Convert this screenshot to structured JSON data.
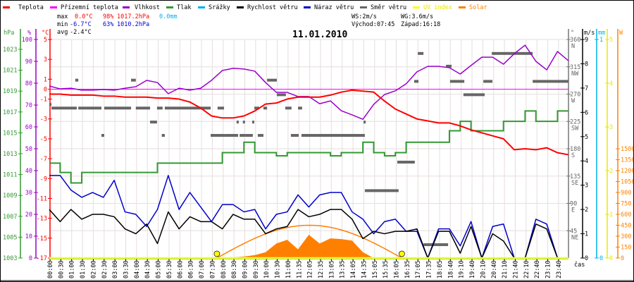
{
  "legend": [
    {
      "label": "Teplota",
      "color": "#ff0000"
    },
    {
      "label": "Přízemní teplota",
      "color": "#ff00ff"
    },
    {
      "label": "Vlhkost",
      "color": "#9900cc"
    },
    {
      "label": "Tlak",
      "color": "#339933"
    },
    {
      "label": "Srážky",
      "color": "#00b0f0"
    },
    {
      "label": "Rychlost větru",
      "color": "#000000"
    },
    {
      "label": "Náraz větru",
      "color": "#0000cc"
    },
    {
      "label": "Směr větru",
      "color": "#666666"
    },
    {
      "label": "UV index",
      "color": "#ffff00"
    },
    {
      "label": "Solar",
      "color": "#ff8000"
    }
  ],
  "stats": {
    "max_label": "max",
    "max_temp": "0.0°C",
    "max_hum": "98%",
    "max_press": "1017.2hPa",
    "max_rain": "0.0mm",
    "min_label": "min",
    "min_temp": "-6.7°C",
    "min_hum": "63%",
    "min_press": "1010.2hPa",
    "avg_label": "avg",
    "avg_temp": "-2.4°C"
  },
  "wind_info": {
    "ws": "WS:2m/s",
    "wg": "WG:3.6m/s",
    "sunrise": "Východ:07:45",
    "sunset": "Západ:16:18"
  },
  "chart_data": {
    "type": "line",
    "title": "11.01.2010",
    "xlabel": "čas",
    "x_tick_labels": [
      "00:00",
      "00:30",
      "01:00",
      "01:30",
      "02:00",
      "02:30",
      "03:00",
      "03:30",
      "04:00",
      "04:30",
      "05:00",
      "05:30",
      "06:00",
      "06:30",
      "07:00",
      "07:30",
      "08:00",
      "08:30",
      "09:00",
      "09:30",
      "10:00",
      "10:30",
      "11:00",
      "11:35",
      "12:05",
      "12:35",
      "13:05",
      "13:35",
      "14:05",
      "14:35",
      "15:05",
      "15:35",
      "16:05",
      "16:35",
      "17:05",
      "17:35",
      "18:05",
      "18:40",
      "19:10",
      "19:40",
      "20:10",
      "20:40",
      "21:10",
      "21:40",
      "22:10",
      "22:40",
      "23:10",
      "23:40"
    ],
    "x_start_hours": 0,
    "x_step_hours": 0.5,
    "axes": {
      "pressure": {
        "unit": "hPa",
        "range": [
          1003,
          1023
        ],
        "ticks": [
          "1003",
          "1005",
          "1007",
          "1009",
          "1011",
          "1013",
          "1015",
          "1017",
          "1019",
          "1021",
          "1023"
        ],
        "color": "#339933"
      },
      "humidity": {
        "unit": "%",
        "range": [
          0,
          100
        ],
        "ticks": [
          "0",
          "10",
          "20",
          "30",
          "40",
          "50",
          "60",
          "70",
          "80",
          "90",
          "100"
        ],
        "color": "#9900cc"
      },
      "temperature": {
        "unit": "°C",
        "range": [
          -17,
          5
        ],
        "ticks": [
          "5",
          "3",
          "1",
          "0",
          "-1",
          "-3",
          "-5",
          "-7",
          "-9",
          "-11",
          "-13",
          "-15",
          "-17"
        ],
        "color": "#ff0000"
      },
      "direction": {
        "unit": "°",
        "range": [
          0,
          360
        ],
        "ticks": [
          {
            "v": "360",
            "d": "N"
          },
          {
            "v": "315",
            "d": "NW"
          },
          {
            "v": "270",
            "d": "W"
          },
          {
            "v": "225",
            "d": "SW"
          },
          {
            "v": "180",
            "d": "S"
          },
          {
            "v": "135",
            "d": "SE"
          },
          {
            "v": "90",
            "d": "E"
          },
          {
            "v": "45",
            "d": "NE"
          }
        ],
        "color": "#777777"
      },
      "wind": {
        "unit": "m/s",
        "range": [
          0,
          9
        ],
        "ticks": [
          "0",
          "1",
          "2",
          "3",
          "4",
          "5",
          "6",
          "7",
          "8",
          "9"
        ],
        "color": "#000000"
      },
      "rain": {
        "unit": "mm",
        "range": [
          0,
          1
        ],
        "ticks": [
          "0",
          "1"
        ],
        "color": "#00b0f0"
      },
      "uv": {
        "unit": "",
        "range": [
          0,
          5
        ],
        "ticks": [
          "0",
          "1",
          "2",
          "3",
          "4",
          "5"
        ],
        "color": "#e8e800"
      },
      "solar": {
        "unit": "W",
        "range": [
          0,
          3000
        ],
        "ticks": [
          "0",
          "150",
          "300",
          "450",
          "600",
          "750",
          "900",
          "1050",
          "1200",
          "1350",
          "1500"
        ],
        "color": "#ff8000"
      }
    },
    "series": {
      "temperature": [
        -0.5,
        -0.5,
        -0.6,
        -0.6,
        -0.6,
        -0.7,
        -0.7,
        -0.8,
        -0.8,
        -0.8,
        -0.9,
        -0.9,
        -1.0,
        -1.3,
        -1.9,
        -2.7,
        -2.9,
        -2.9,
        -2.7,
        -2.2,
        -1.5,
        -1.4,
        -1.0,
        -0.8,
        -0.8,
        -0.8,
        -0.6,
        -0.3,
        -0.1,
        -0.2,
        -0.3,
        -1.2,
        -2.0,
        -2.5,
        -3.0,
        -3.2,
        -3.4,
        -3.4,
        -3.7,
        -4.1,
        -4.4,
        -4.7,
        -5.0,
        -6.1,
        -6.0,
        -6.1,
        -5.9,
        -6.4,
        -6.6
      ],
      "ground_temperature": [
        0,
        0,
        0,
        0,
        0,
        0,
        0,
        0,
        0,
        0,
        0,
        0,
        0,
        0,
        0,
        0,
        0,
        0,
        0,
        0,
        0,
        0,
        0,
        0,
        0,
        0,
        0,
        0,
        0,
        0,
        0,
        0,
        0,
        0,
        0,
        0,
        0,
        0,
        0,
        0,
        0,
        0,
        0,
        0,
        0,
        0,
        0,
        0,
        0
      ],
      "humidity": [
        78.7,
        77.4,
        77.7,
        76.8,
        76.8,
        77.1,
        76.8,
        77.7,
        78.4,
        81.3,
        80.3,
        75.2,
        77.7,
        76.8,
        77.7,
        81.3,
        85.8,
        86.8,
        86.5,
        85.5,
        80.3,
        75.8,
        75.8,
        73.9,
        73.9,
        70.6,
        71.9,
        67.4,
        65.5,
        63.5,
        70.3,
        74.8,
        76.5,
        79.7,
        85.2,
        87.7,
        87.7,
        87.1,
        84.2,
        88.1,
        91.9,
        91.9,
        88.7,
        93.5,
        97.4,
        90.0,
        86.1,
        94.5,
        90.3
      ],
      "pressure": [
        1012.1,
        1011.2,
        1010.2,
        1011.2,
        1011.2,
        1011.2,
        1011.2,
        1011.2,
        1011.2,
        1011.2,
        1012.1,
        1012.1,
        1012.1,
        1012.1,
        1012.1,
        1012.1,
        1013.1,
        1013.1,
        1014.1,
        1013.1,
        1013.1,
        1012.8,
        1013.1,
        1013.1,
        1013.1,
        1013.1,
        1012.8,
        1013.1,
        1013.1,
        1014.1,
        1013.1,
        1012.8,
        1013.1,
        1014.1,
        1014.1,
        1014.1,
        1014.1,
        1015.2,
        1016.1,
        1015.2,
        1015.2,
        1015.2,
        1016.1,
        1016.1,
        1017.1,
        1016.1,
        1016.1,
        1017.1,
        1017.1
      ],
      "rain": 0.0,
      "wind_speed": [
        2.0,
        1.5,
        2.0,
        1.6,
        1.8,
        1.8,
        1.7,
        1.2,
        1.0,
        1.4,
        0.6,
        1.9,
        1.2,
        1.7,
        1.5,
        1.5,
        1.2,
        1.8,
        1.6,
        1.6,
        1.0,
        1.2,
        1.3,
        2.0,
        1.7,
        1.8,
        2.0,
        2.0,
        1.6,
        0.8,
        1.1,
        1.0,
        1.1,
        1.1,
        1.2,
        0,
        1.1,
        1.1,
        0.2,
        1.3,
        0,
        1.0,
        0.7,
        0,
        0,
        1.4,
        1.2,
        0,
        0
      ],
      "wind_gust": [
        3.4,
        3.4,
        2.8,
        2.5,
        2.7,
        2.5,
        3.2,
        1.9,
        1.8,
        1.3,
        2.0,
        3.4,
        2.0,
        2.7,
        2.1,
        1.5,
        2.2,
        2.2,
        1.9,
        2.0,
        1.2,
        1.8,
        1.9,
        2.6,
        2.1,
        2.6,
        2.7,
        2.7,
        1.9,
        1.6,
        1.0,
        1.5,
        1.6,
        1.1,
        1.1,
        0,
        1.2,
        1.2,
        0.5,
        1.5,
        0,
        1.3,
        1.4,
        0,
        0,
        1.6,
        1.4,
        0,
        0
      ],
      "wind_direction_segments": [
        [
          0,
          0.1,
          253
        ],
        [
          0.1,
          1.27,
          247
        ],
        [
          1.34,
          2.41,
          247
        ],
        [
          2.54,
          3.78,
          247
        ],
        [
          4.0,
          4.66,
          247
        ],
        [
          4.98,
          5.24,
          247
        ],
        [
          5.34,
          7.46,
          247
        ],
        [
          7.78,
          8.08,
          247
        ],
        [
          1.2,
          1.34,
          293
        ],
        [
          3.78,
          4.0,
          293
        ],
        [
          4.66,
          4.98,
          224
        ],
        [
          2.41,
          2.54,
          202
        ],
        [
          5.2,
          5.34,
          202
        ],
        [
          7.46,
          8.08,
          202
        ],
        [
          8.08,
          8.73,
          202
        ],
        [
          8.8,
          9.06,
          202
        ],
        [
          9.06,
          9.41,
          202
        ],
        [
          9.64,
          9.9,
          202
        ],
        [
          9.48,
          9.71,
          247
        ],
        [
          9.9,
          10.07,
          247
        ],
        [
          8.66,
          8.76,
          224
        ],
        [
          8.95,
          9.03,
          224
        ],
        [
          9.38,
          9.45,
          224
        ],
        [
          10.07,
          10.52,
          293
        ],
        [
          10.52,
          10.94,
          269
        ],
        [
          10.91,
          11.2,
          247
        ],
        [
          11.5,
          11.69,
          247
        ],
        [
          11.17,
          11.53,
          202
        ],
        [
          11.66,
          14.59,
          202
        ],
        [
          14.53,
          14.63,
          224
        ],
        [
          14.59,
          16.15,
          111
        ],
        [
          16.09,
          16.9,
          158
        ],
        [
          16.87,
          17.07,
          291
        ],
        [
          17.04,
          17.3,
          337
        ],
        [
          17.3,
          18.44,
          22
        ],
        [
          18.34,
          18.6,
          316
        ],
        [
          18.53,
          19.19,
          291
        ],
        [
          19.15,
          20.13,
          269
        ],
        [
          20.07,
          20.49,
          291
        ],
        [
          20.46,
          22.35,
          337
        ],
        [
          22.35,
          24,
          291
        ]
      ],
      "uv_index": 0,
      "solar": [
        0,
        0,
        0,
        0,
        0,
        0,
        0,
        0,
        0,
        0,
        0,
        0,
        0,
        0,
        0,
        0,
        0,
        10,
        20,
        40,
        80,
        200,
        250,
        120,
        320,
        200,
        270,
        260,
        240,
        80,
        0,
        0,
        0,
        0,
        0,
        0,
        0,
        0,
        0,
        0,
        0,
        0,
        0,
        0,
        0,
        0,
        0,
        0,
        0
      ],
      "solar_theoretical_peak_w": 450,
      "sunrise_hours": 7.75,
      "sunset_hours": 16.3
    }
  }
}
